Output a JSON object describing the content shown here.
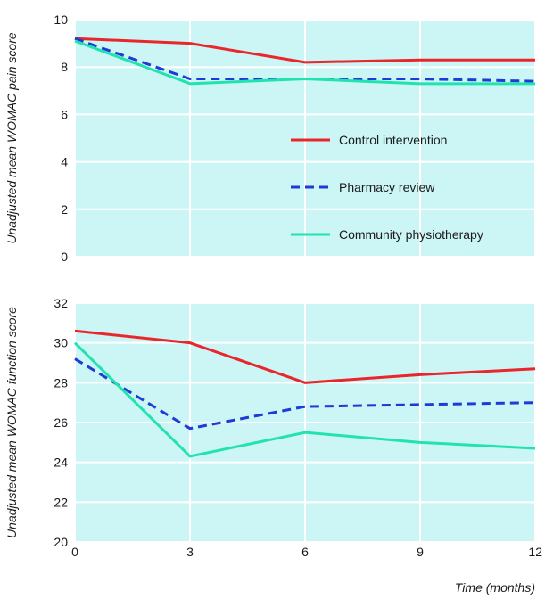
{
  "chart_data": [
    {
      "type": "line",
      "ylabel": "Unadjusted mean WOMAC pain score",
      "xlabel": "",
      "x": [
        0,
        3,
        6,
        9,
        12
      ],
      "xlim": [
        0,
        12
      ],
      "ylim": [
        0,
        10
      ],
      "yticks": [
        0,
        2,
        4,
        6,
        8,
        10
      ],
      "grid": true,
      "legend_position": "center-right",
      "series": [
        {
          "name": "Control intervention",
          "color": "#e8262b",
          "dash": "solid",
          "values": [
            9.2,
            9.0,
            8.2,
            8.3,
            8.3
          ]
        },
        {
          "name": "Pharmacy review",
          "color": "#1f3bd6",
          "dash": "dashed",
          "values": [
            9.2,
            7.5,
            7.5,
            7.5,
            7.4
          ]
        },
        {
          "name": "Community physiotherapy",
          "color": "#21e3b0",
          "dash": "solid",
          "values": [
            9.1,
            7.3,
            7.5,
            7.3,
            7.3
          ]
        }
      ]
    },
    {
      "type": "line",
      "ylabel": "Unadjusted mean WOMAC function score",
      "xlabel": "Time (months)",
      "x": [
        0,
        3,
        6,
        9,
        12
      ],
      "xticks": [
        "0",
        "3",
        "6",
        "9",
        "12"
      ],
      "xlim": [
        0,
        12
      ],
      "ylim": [
        20,
        32
      ],
      "yticks": [
        20,
        22,
        24,
        26,
        28,
        30,
        32
      ],
      "grid": true,
      "series": [
        {
          "color": "#e8262b",
          "dash": "solid",
          "values": [
            30.6,
            30.0,
            28.0,
            28.4,
            28.7
          ]
        },
        {
          "color": "#1f3bd6",
          "dash": "dashed",
          "values": [
            29.2,
            25.7,
            26.8,
            26.9,
            27.0
          ]
        },
        {
          "color": "#21e3b0",
          "dash": "solid",
          "values": [
            30.0,
            24.3,
            25.5,
            25.0,
            24.7
          ]
        }
      ]
    }
  ],
  "colors": {
    "plot_background": "#ccf5f5",
    "gridline": "#ffffff"
  }
}
